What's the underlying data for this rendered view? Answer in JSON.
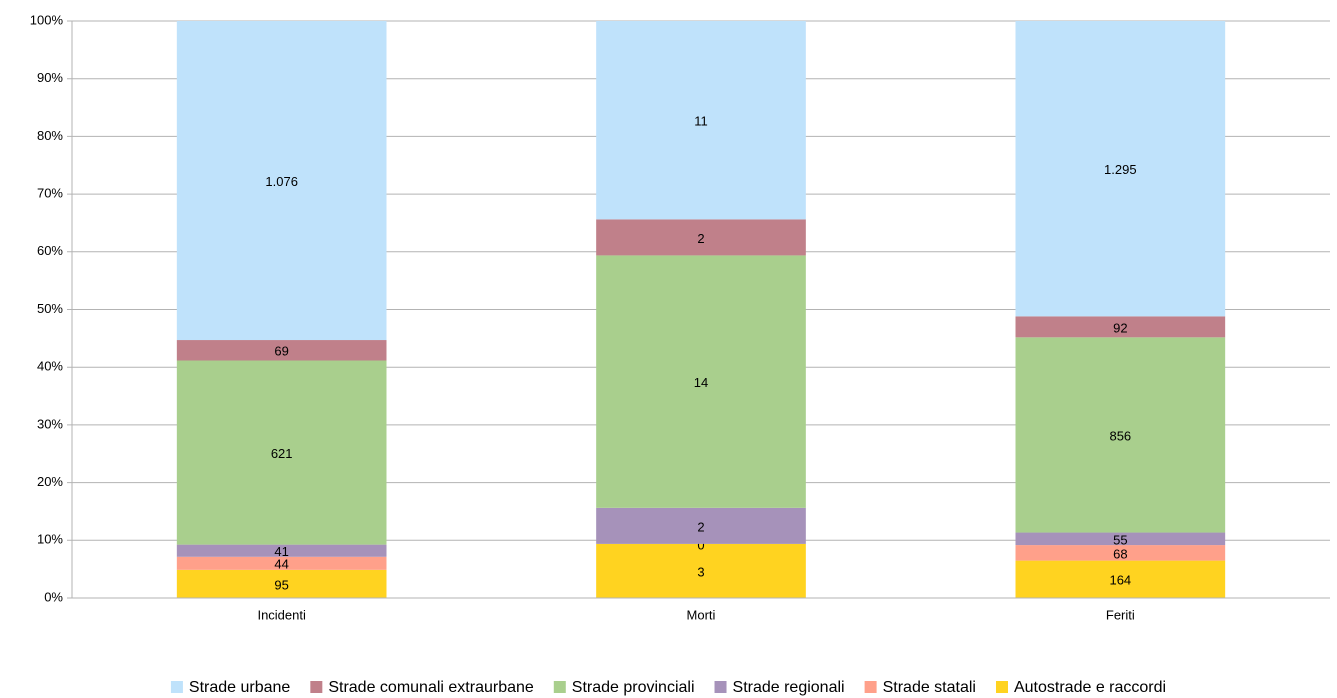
{
  "chart_data": {
    "type": "stacked_percent_bar",
    "categories": [
      "Incidenti",
      "Morti",
      "Feriti"
    ],
    "series": [
      {
        "name": "Strade urbane",
        "color": "#bfe2fb",
        "values": [
          1076,
          11,
          1295
        ],
        "value_labels": [
          "1.076",
          "11",
          "1.295"
        ]
      },
      {
        "name": "Strade comunali extraurbane",
        "color": "#c0808a",
        "values": [
          69,
          2,
          92
        ]
      },
      {
        "name": "Strade provinciali",
        "color": "#a9cf8d",
        "values": [
          621,
          14,
          856
        ]
      },
      {
        "name": "Strade regionali",
        "color": "#a692ba",
        "values": [
          41,
          2,
          55
        ]
      },
      {
        "name": "Strade statali",
        "color": "#ffa08a",
        "values": [
          44,
          0,
          68
        ]
      },
      {
        "name": "Autostrade e raccordi",
        "color": "#ffd320",
        "values": [
          95,
          3,
          164
        ]
      }
    ],
    "ylim": [
      0,
      100
    ],
    "yticks": [
      {
        "value": 0,
        "label": "0%"
      },
      {
        "value": 10,
        "label": "10%"
      },
      {
        "value": 20,
        "label": "20%"
      },
      {
        "value": 30,
        "label": "30%"
      },
      {
        "value": 40,
        "label": "40%"
      },
      {
        "value": 50,
        "label": "50%"
      },
      {
        "value": 60,
        "label": "60%"
      },
      {
        "value": 70,
        "label": "70%"
      },
      {
        "value": 80,
        "label": "80%"
      },
      {
        "value": 90,
        "label": "90%"
      },
      {
        "value": 100,
        "label": "100%"
      }
    ],
    "grid": true,
    "legend": "bottom"
  }
}
